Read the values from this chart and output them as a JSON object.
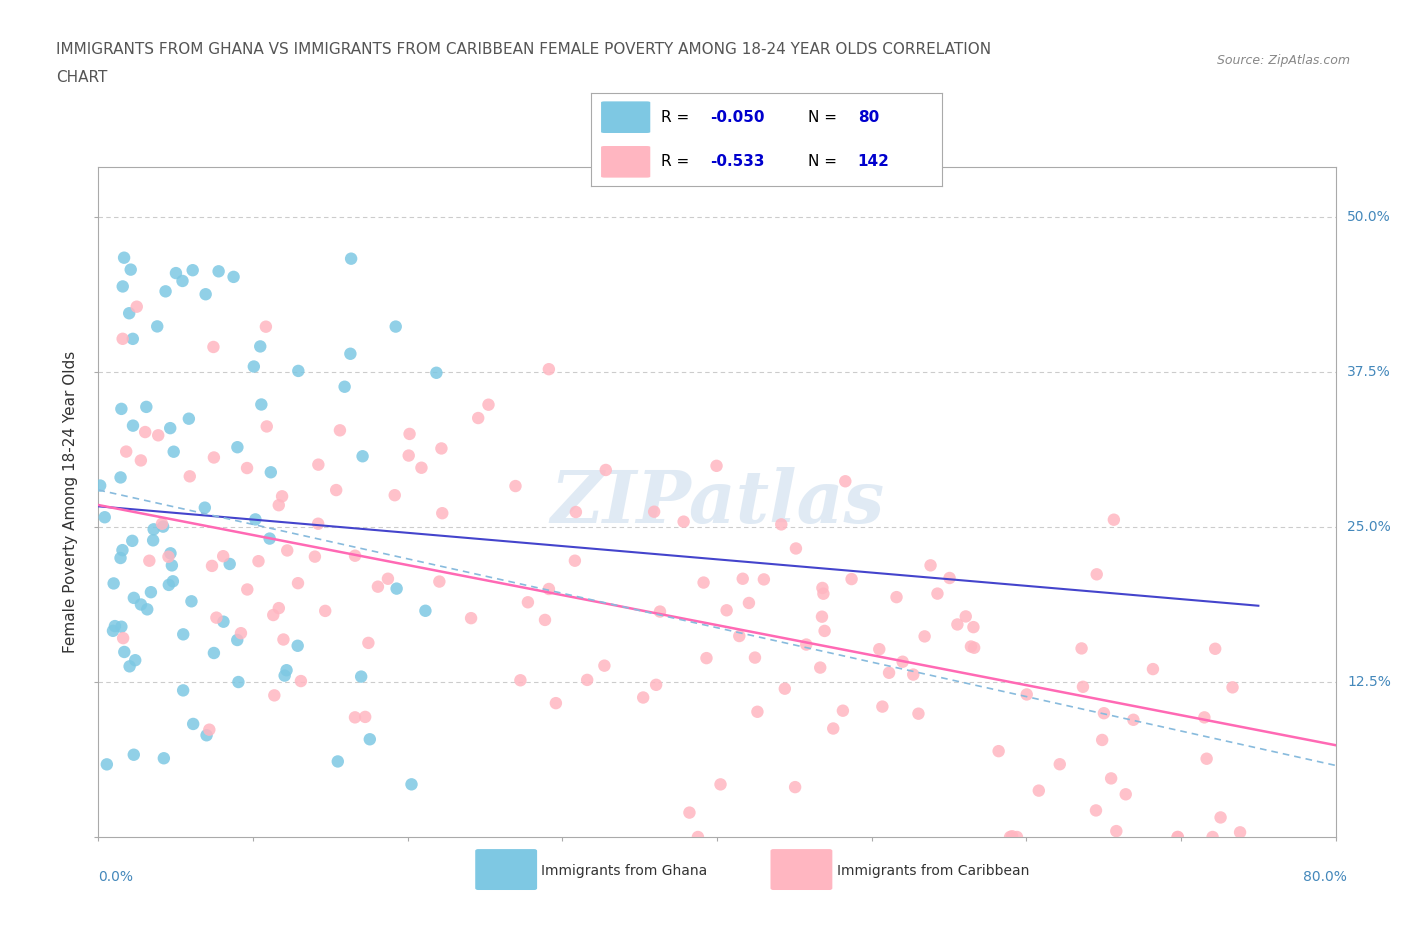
{
  "title_line1": "IMMIGRANTS FROM GHANA VS IMMIGRANTS FROM CARIBBEAN FEMALE POVERTY AMONG 18-24 YEAR OLDS CORRELATION",
  "title_line2": "CHART",
  "source_text": "Source: ZipAtlas.com",
  "ylabel": "Female Poverty Among 18-24 Year Olds",
  "xlim": [
    0.0,
    0.8
  ],
  "ylim": [
    0.0,
    0.54
  ],
  "ytick_positions": [
    0.0,
    0.125,
    0.25,
    0.375,
    0.5
  ],
  "ghana_color": "#7EC8E3",
  "caribbean_color": "#FFB6C1",
  "ghana_R": -0.05,
  "ghana_N": 80,
  "caribbean_R": -0.533,
  "caribbean_N": 142,
  "legend_R_color": "#0000CD",
  "watermark_text": "ZIPatlas",
  "background_color": "#FFFFFF",
  "grid_color": "#CCCCCC",
  "axis_color": "#AAAAAA",
  "right_labels": {
    "0.125": "12.5%",
    "0.25": "25.0%",
    "0.375": "37.5%",
    "0.50": "50.0%"
  },
  "ghana_seed": 123,
  "carib_seed": 456
}
